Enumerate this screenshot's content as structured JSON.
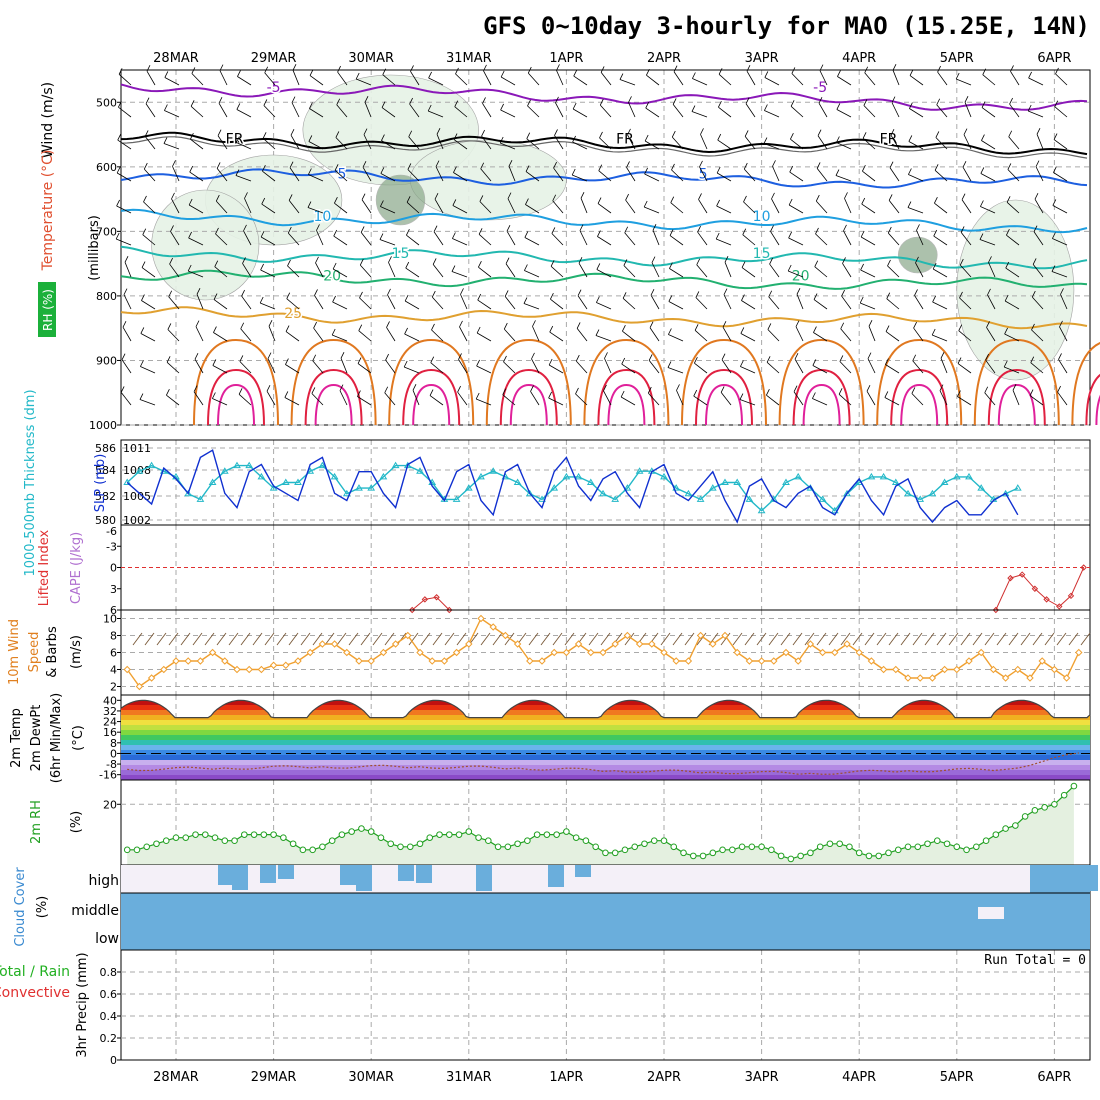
{
  "title": "GFS 0~10day 3-hourly for MAO (15.25E, 14N)",
  "date_labels": [
    "28MAR",
    "29MAR",
    "30MAR",
    "31MAR",
    "1APR",
    "2APR",
    "3APR",
    "4APR",
    "5APR",
    "6APR"
  ],
  "colors": {
    "grid": "#aaaaaa",
    "purple": "#8a18b8",
    "black": "#000000",
    "blue": "#1d5fe0",
    "lightblue": "#1f9fe0",
    "teal": "#22b8b0",
    "green": "#22b070",
    "orange": "#e0a030",
    "darkorange": "#e07820",
    "red": "#e02040",
    "magenta": "#e0209a",
    "rhfill": "#e6f2e6",
    "rhfill_dark": "#8aa88a",
    "slp": "#1030d0",
    "thick": "#22b8c8",
    "wind": "#f0a030",
    "cloud": "#6aaedc",
    "cloud_bg": "#f4f0f8",
    "cape": "#d03030",
    "rh2m": "#22a022",
    "rh2m_fill": "#e4f0e0"
  },
  "chart_data": [
    {
      "id": "upper-air",
      "type": "contour",
      "ylabel": "(millibars)",
      "side_labels": [
        "Wind (m/s)",
        "Temperature (°C)",
        "RH (%)"
      ],
      "y_ticks": [
        500,
        600,
        700,
        800,
        900,
        1000
      ],
      "ylim": [
        450,
        1000
      ],
      "y_inverted": true,
      "temperature_contours": [
        {
          "level": "-5",
          "color": "purple",
          "base": 478,
          "labels": [
            {
              "day": 1.0,
              "text": "-5"
            },
            {
              "day": 6.6,
              "text": "-5"
            }
          ]
        },
        {
          "level": "FR",
          "color": "black",
          "base": 558,
          "labels": [
            {
              "day": 0.6,
              "text": "FR"
            },
            {
              "day": 4.6,
              "text": "FR"
            },
            {
              "day": 7.3,
              "text": "FR"
            }
          ]
        },
        {
          "level": "5",
          "color": "blue",
          "base": 612,
          "labels": [
            {
              "day": 1.7,
              "text": "5"
            },
            {
              "day": 5.4,
              "text": "5"
            }
          ]
        },
        {
          "level": "10",
          "color": "lightblue",
          "base": 678,
          "labels": [
            {
              "day": 1.5,
              "text": "10"
            },
            {
              "day": 6.0,
              "text": "10"
            }
          ]
        },
        {
          "level": "15",
          "color": "teal",
          "base": 735,
          "labels": [
            {
              "day": 2.3,
              "text": "15"
            },
            {
              "day": 6.0,
              "text": "15"
            }
          ]
        },
        {
          "level": "20",
          "color": "green",
          "base": 770,
          "labels": [
            {
              "day": 1.6,
              "text": "20"
            },
            {
              "day": 6.4,
              "text": "20"
            }
          ]
        },
        {
          "level": "25",
          "color": "orange",
          "base": 828,
          "labels": [
            {
              "day": 1.2,
              "text": "25"
            }
          ]
        }
      ]
    },
    {
      "id": "slp-thickness",
      "type": "line",
      "ylabel_left": "1000-500mb Thickness (dm)",
      "ylabel_right": "SLP (mb)",
      "left_ticks": [
        586,
        584,
        582,
        580
      ],
      "right_ticks": [
        1011,
        1008,
        1005,
        1002
      ],
      "series": [
        {
          "name": "SLP (mb)",
          "color": "slp",
          "ylim": [
            1001,
            1012
          ],
          "values": [
            1006.5,
            1005,
            1003.5,
            1008.5,
            1007,
            1005,
            1010,
            1011,
            1005,
            1003,
            1008,
            1009,
            1006,
            1005,
            1004,
            1009,
            1010,
            1005,
            1004,
            1008,
            1008,
            1005,
            1003,
            1009,
            1010,
            1006,
            1004,
            1008,
            1009,
            1004,
            1002,
            1008,
            1009,
            1005,
            1003,
            1008,
            1010,
            1006,
            1004,
            1007,
            1008,
            1005,
            1003,
            1008,
            1009,
            1005,
            1004,
            1006,
            1008,
            1004,
            1001,
            1006,
            1007,
            1004,
            1003,
            1005,
            1006,
            1003,
            1002,
            1005,
            1007,
            1004,
            1002,
            1006,
            1007,
            1003,
            1001,
            1003,
            1004,
            1002,
            1002,
            1004,
            1005,
            1002
          ]
        },
        {
          "name": "1000-500mb Thickness (dm)",
          "color": "thick",
          "ylim": [
            580,
            587
          ],
          "values": [
            583.5,
            584.5,
            585,
            584.5,
            584,
            582.5,
            582,
            583.5,
            584.5,
            585,
            585,
            584,
            583,
            583.5,
            583.5,
            584.5,
            585,
            584,
            582.5,
            583,
            583,
            584,
            585,
            585,
            584.5,
            583.5,
            582,
            582,
            583,
            584,
            584.5,
            584,
            583.5,
            582.5,
            582,
            583,
            584,
            584,
            583.5,
            582.5,
            582,
            583,
            584.5,
            584.5,
            584,
            583,
            582.5,
            582,
            583,
            583.5,
            583.5,
            582,
            581,
            582,
            583.5,
            584,
            583,
            582,
            581,
            582.5,
            583.5,
            584,
            584,
            583.5,
            582.5,
            582,
            582.5,
            583.5,
            584,
            584,
            583,
            582,
            582.5,
            583
          ]
        }
      ]
    },
    {
      "id": "li-cape",
      "type": "line",
      "ylabel_left": "Lifted Index",
      "ylabel_right": "CAPE (J/kg)",
      "left_ticks": [
        -3,
        0,
        3,
        6
      ],
      "ylim": [
        -6,
        6
      ],
      "series": [
        {
          "name": "Lifted Index (segment 1)",
          "color": "cape",
          "x_days": [
            2.42,
            2.55,
            2.67,
            2.8
          ],
          "values": [
            6.5,
            4.5,
            4.2,
            6.5
          ]
        },
        {
          "name": "Lifted Index (segment 2)",
          "color": "cape",
          "x_days": [
            8.4,
            8.55,
            8.67,
            8.8,
            8.92,
            9.05,
            9.17,
            9.3
          ],
          "values": [
            6.5,
            1.5,
            1.0,
            3.0,
            4.5,
            5.5,
            4.0,
            0.0
          ]
        }
      ]
    },
    {
      "id": "wind10m",
      "type": "line",
      "ylabel_left": "10m Wind Speed & Barbs (m/s)",
      "left_ticks": [
        10,
        8,
        6,
        4,
        2
      ],
      "ylim": [
        1,
        11
      ],
      "series": [
        {
          "name": "10m Wind Speed",
          "color": "wind",
          "values": [
            4,
            2,
            3,
            4,
            5,
            5,
            5,
            6,
            5,
            4,
            4,
            4,
            4.5,
            4.5,
            5,
            6,
            7,
            7,
            6,
            5,
            5,
            6,
            7,
            8,
            6,
            5,
            5,
            6,
            7,
            10,
            9,
            8,
            7,
            5,
            5,
            6,
            6,
            7,
            6,
            6,
            7,
            8,
            7,
            7,
            6,
            5,
            5,
            8,
            7,
            8,
            6,
            5,
            5,
            5,
            6,
            5,
            7,
            6,
            6,
            7,
            6,
            5,
            4,
            4,
            3,
            3,
            3,
            4,
            4,
            5,
            6,
            4,
            3,
            4,
            3,
            5,
            4,
            3,
            6,
            5,
            3,
            3,
            2,
            3,
            4
          ]
        }
      ]
    },
    {
      "id": "temp2m",
      "type": "area",
      "ylabel_left": "2m Temp / 2m DewPt (6hr Min/Max) (°C)",
      "left_ticks": [
        40,
        32,
        24,
        16,
        8,
        0,
        -8,
        -16
      ],
      "ylim": [
        -20,
        44
      ],
      "series": [
        {
          "name": "2m Temp",
          "color": "red",
          "daily_min": 27,
          "daily_max": 40
        },
        {
          "name": "2m DewPt",
          "color": "darkorange",
          "values_daily": [
            -12,
            -11,
            -10,
            -10,
            -11,
            -13,
            -14,
            -15,
            -13,
            -12,
            4
          ]
        }
      ],
      "color_bands": [
        "#8a4ac8",
        "#9a6ad8",
        "#b48ae4",
        "#c8b0ee",
        "#2a6ad8",
        "#3a8ae4",
        "#6ab4ec",
        "#30c0b0",
        "#40c860",
        "#80d840",
        "#c0e040",
        "#f0e040",
        "#f0b020",
        "#f07820",
        "#e83010",
        "#c01010",
        "#900000"
      ]
    },
    {
      "id": "rh2m",
      "type": "area",
      "ylabel_left": "2m RH (%)",
      "left_ticks": [
        20
      ],
      "ylim": [
        0,
        28
      ],
      "series": [
        {
          "name": "2m RH",
          "color": "rh2m",
          "values": [
            5,
            5,
            6,
            7,
            8,
            9,
            9,
            10,
            10,
            9,
            8,
            8,
            10,
            10,
            10,
            10,
            9,
            7,
            5,
            5,
            6,
            8,
            10,
            11,
            12,
            11,
            9,
            7,
            6,
            6,
            7,
            9,
            10,
            10,
            10,
            11,
            9,
            8,
            6,
            6,
            7,
            8,
            10,
            10,
            10,
            11,
            9,
            8,
            6,
            4,
            4,
            5,
            6,
            7,
            8,
            8,
            6,
            4,
            3,
            3,
            4,
            5,
            5,
            6,
            6,
            6,
            5,
            3,
            2,
            3,
            4,
            6,
            7,
            7,
            6,
            4,
            3,
            3,
            4,
            5,
            6,
            6,
            7,
            8,
            7,
            6,
            5,
            6,
            8,
            10,
            12,
            13,
            16,
            18,
            19,
            20,
            23,
            26
          ]
        }
      ]
    },
    {
      "id": "cloud",
      "type": "bar",
      "ylabel_left": "Cloud Cover (%)",
      "row_labels": [
        "high",
        "middle",
        "low"
      ]
    },
    {
      "id": "precip",
      "type": "bar",
      "ylabel_left": "3hr Precip (mm)",
      "side_labels": [
        "Total / Rain",
        "Convective"
      ],
      "left_ticks": [
        "0.8",
        "0.6",
        "0.4",
        "0.2",
        "0"
      ],
      "ylim": [
        0,
        1
      ],
      "run_total": "Run Total = 0",
      "values": []
    }
  ]
}
